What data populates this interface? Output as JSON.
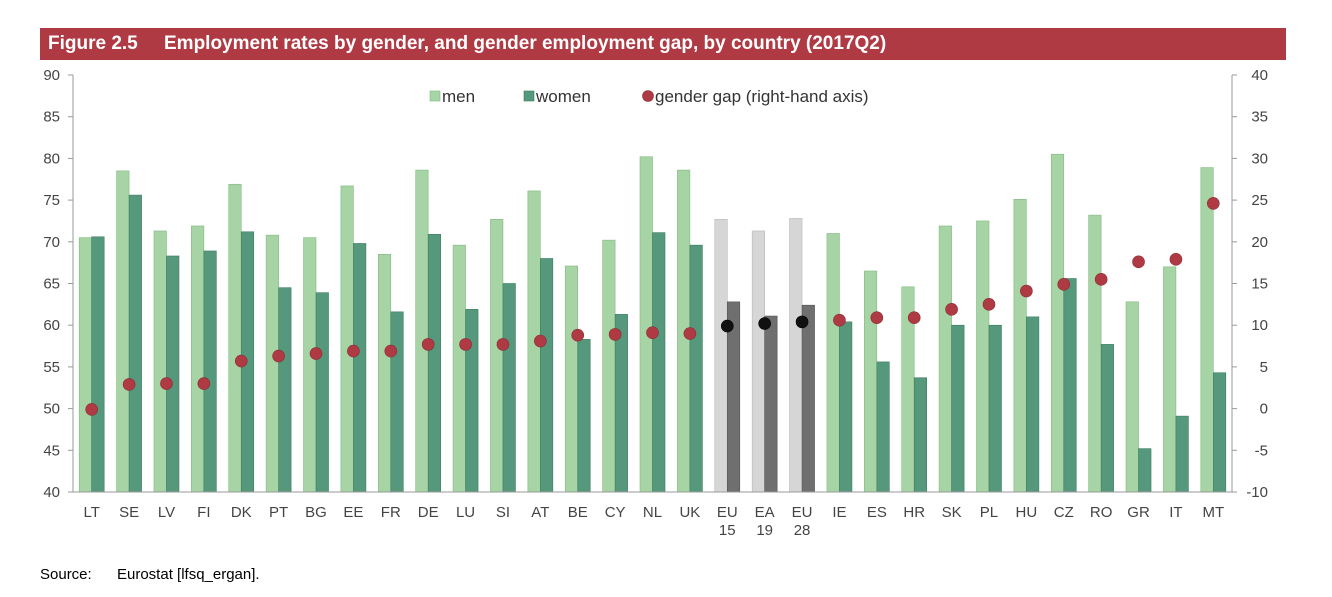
{
  "header": {
    "figure_label": "Figure 2.5",
    "title": "Employment rates by gender, and gender employment gap, by country (2017Q2)"
  },
  "source": {
    "label": "Source:",
    "text": "Eurostat [lfsq_ergan]."
  },
  "chart_data": {
    "type": "bar",
    "title": "Employment rates by gender, and gender employment gap, by country (2017Q2)",
    "categories": [
      [
        "LT"
      ],
      [
        "SE"
      ],
      [
        "LV"
      ],
      [
        "FI"
      ],
      [
        "DK"
      ],
      [
        "PT"
      ],
      [
        "BG"
      ],
      [
        "EE"
      ],
      [
        "FR"
      ],
      [
        "DE"
      ],
      [
        "LU"
      ],
      [
        "SI"
      ],
      [
        "AT"
      ],
      [
        "BE"
      ],
      [
        "CY"
      ],
      [
        "NL"
      ],
      [
        "UK"
      ],
      [
        "EU",
        "15"
      ],
      [
        "EA",
        "19"
      ],
      [
        "EU",
        "28"
      ],
      [
        "IE"
      ],
      [
        "ES"
      ],
      [
        "HR"
      ],
      [
        "SK"
      ],
      [
        "PL"
      ],
      [
        "HU"
      ],
      [
        "CZ"
      ],
      [
        "RO"
      ],
      [
        "GR"
      ],
      [
        "IT"
      ],
      [
        "MT"
      ]
    ],
    "aggregate_indices": [
      17,
      18,
      19
    ],
    "series": [
      {
        "name": "men",
        "axis": "left",
        "values": [
          70.5,
          78.5,
          71.3,
          71.9,
          76.9,
          70.8,
          70.5,
          76.7,
          68.5,
          78.6,
          69.6,
          72.7,
          76.1,
          67.1,
          70.2,
          80.2,
          78.6,
          72.7,
          71.3,
          72.8,
          71.0,
          66.5,
          64.6,
          71.9,
          72.5,
          75.1,
          80.5,
          73.2,
          62.8,
          67.0,
          78.9
        ]
      },
      {
        "name": "women",
        "axis": "left",
        "values": [
          70.6,
          75.6,
          68.3,
          68.9,
          71.2,
          64.5,
          63.9,
          69.8,
          61.6,
          70.9,
          61.9,
          65.0,
          68.0,
          58.3,
          61.3,
          71.1,
          69.6,
          62.8,
          61.1,
          62.4,
          60.4,
          55.6,
          53.7,
          60.0,
          60.0,
          61.0,
          65.6,
          57.7,
          45.2,
          49.1,
          54.3
        ]
      },
      {
        "name": "gender gap (right-hand axis)",
        "axis": "right",
        "type": "scatter",
        "values": [
          -0.1,
          2.9,
          3.0,
          3.0,
          5.7,
          6.3,
          6.6,
          6.9,
          6.9,
          7.7,
          7.7,
          7.7,
          8.1,
          8.8,
          8.9,
          9.1,
          9.0,
          9.9,
          10.2,
          10.4,
          10.6,
          10.9,
          10.9,
          11.9,
          12.5,
          14.1,
          14.9,
          15.5,
          17.6,
          17.9,
          24.6
        ]
      }
    ],
    "ylim": [
      40,
      90
    ],
    "yticks": [
      40,
      45,
      50,
      55,
      60,
      65,
      70,
      75,
      80,
      85,
      90
    ],
    "ylim_right": [
      -10,
      40
    ],
    "yticks_right": [
      -10,
      -5,
      0,
      5,
      10,
      15,
      20,
      25,
      30,
      35,
      40
    ],
    "legend": "top-center",
    "grid": false,
    "colors": {
      "men": "#a6d4a4",
      "women": "#55987c",
      "men_aggregate": "#d6d6d6",
      "women_aggregate": "#6f6f6f",
      "gap": "#b03a44",
      "gap_aggregate": "#111111",
      "header_bg": "#b03a44"
    }
  }
}
